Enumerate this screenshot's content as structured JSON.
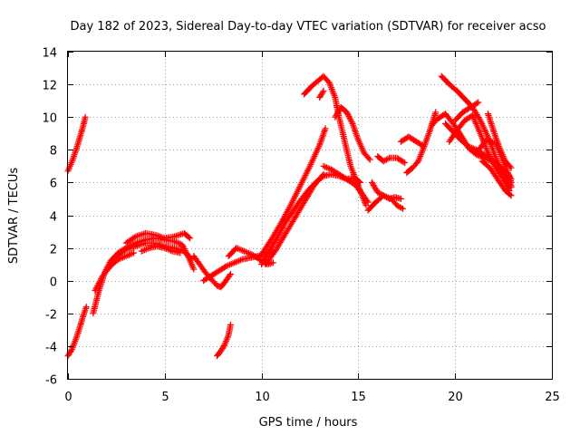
{
  "chart_data": {
    "type": "scatter",
    "title": "Day 182 of 2023, Sidereal Day-to-day VTEC variation (SDTVAR) for receiver acso",
    "xlabel": "GPS time / hours",
    "ylabel": "SDTVAR / TECUs",
    "xlim": [
      0,
      25
    ],
    "ylim": [
      -6,
      14
    ],
    "xticks": [
      "0",
      "5",
      "10",
      "15",
      "20",
      "25"
    ],
    "yticks": [
      "-6",
      "-4",
      "-2",
      "0",
      "2",
      "4",
      "6",
      "8",
      "10",
      "12",
      "14"
    ],
    "grid": true,
    "marker": "plus",
    "series": [
      {
        "name": "SDTVAR",
        "color": "#ff0000",
        "tracks": [
          {
            "x": [
              0.0,
              0.25,
              0.5,
              0.75,
              0.9
            ],
            "y": [
              6.7,
              7.4,
              8.3,
              9.3,
              10.0
            ]
          },
          {
            "x": [
              0.0,
              0.2,
              0.4,
              0.6,
              0.8,
              0.95
            ],
            "y": [
              -4.6,
              -4.2,
              -3.6,
              -2.9,
              -2.1,
              -1.6
            ]
          },
          {
            "x": [
              1.3,
              1.6,
              1.9,
              2.2,
              2.6,
              3.0,
              3.5,
              4.0,
              4.5,
              5.0,
              5.5,
              5.9,
              6.2,
              6.5
            ],
            "y": [
              -2.0,
              -0.6,
              0.5,
              1.2,
              1.7,
              2.0,
              2.3,
              2.5,
              2.6,
              2.5,
              2.4,
              2.2,
              1.5,
              0.7
            ]
          },
          {
            "x": [
              2.5,
              3.0,
              3.5,
              4.0,
              4.5,
              5.0,
              5.5,
              6.0,
              6.4
            ],
            "y": [
              1.5,
              1.9,
              2.1,
              2.3,
              2.3,
              2.1,
              2.0,
              1.8,
              1.3
            ]
          },
          {
            "x": [
              1.4,
              1.8,
              2.2,
              2.6,
              3.0,
              3.4
            ],
            "y": [
              -0.6,
              0.3,
              0.9,
              1.3,
              1.5,
              1.7
            ]
          },
          {
            "x": [
              3.0,
              3.5,
              4.0,
              4.5,
              5.0,
              5.5,
              6.0,
              6.3
            ],
            "y": [
              2.3,
              2.7,
              2.9,
              2.8,
              2.6,
              2.7,
              2.9,
              2.6
            ]
          },
          {
            "x": [
              3.8,
              4.2,
              4.6,
              5.0,
              5.4,
              5.8
            ],
            "y": [
              1.8,
              2.0,
              2.1,
              2.0,
              1.8,
              1.7
            ]
          },
          {
            "x": [
              6.5,
              6.8,
              7.1,
              7.4,
              7.7,
              7.9,
              8.1,
              8.4
            ],
            "y": [
              1.5,
              1.0,
              0.5,
              0.1,
              -0.3,
              -0.4,
              -0.1,
              0.4
            ]
          },
          {
            "x": [
              7.0,
              7.4,
              7.8,
              8.2,
              8.6,
              9.0,
              9.4,
              9.8,
              10.2,
              10.6
            ],
            "y": [
              0.0,
              0.3,
              0.6,
              0.9,
              1.1,
              1.3,
              1.4,
              1.5,
              1.6,
              1.8
            ]
          },
          {
            "x": [
              8.3,
              8.7,
              9.1,
              9.5,
              9.9,
              10.3,
              10.6
            ],
            "y": [
              1.5,
              2.0,
              1.8,
              1.6,
              1.3,
              1.0,
              1.1
            ]
          },
          {
            "x": [
              7.7,
              7.9,
              8.1,
              8.3,
              8.4
            ],
            "y": [
              -4.6,
              -4.3,
              -3.9,
              -3.3,
              -2.7
            ]
          },
          {
            "x": [
              10.0,
              10.4,
              10.8,
              11.2,
              11.6,
              12.0,
              12.4,
              12.8,
              13.2,
              13.6,
              14.0,
              14.4,
              14.8,
              15.1
            ],
            "y": [
              1.0,
              1.8,
              2.6,
              3.5,
              4.2,
              4.9,
              5.5,
              6.0,
              6.4,
              6.5,
              6.4,
              6.2,
              6.3,
              6.0
            ]
          },
          {
            "x": [
              10.0,
              10.5,
              11.0,
              11.5,
              12.0,
              12.5,
              13.0,
              13.3
            ],
            "y": [
              1.6,
              2.5,
              3.5,
              4.6,
              5.8,
              7.0,
              8.3,
              9.3
            ]
          },
          {
            "x": [
              10.2,
              10.7,
              11.2,
              11.7,
              12.2,
              12.7,
              13.2
            ],
            "y": [
              1.0,
              1.8,
              2.8,
              3.8,
              4.8,
              5.8,
              6.5
            ]
          },
          {
            "x": [
              13.2,
              13.6,
              14.0,
              14.4,
              14.8,
              15.2,
              15.5
            ],
            "y": [
              7.0,
              6.8,
              6.5,
              6.2,
              5.9,
              5.3,
              4.8
            ]
          },
          {
            "x": [
              12.2,
              12.6,
              13.0,
              13.2,
              13.5,
              13.8,
              14.0,
              14.3,
              14.6,
              15.0,
              15.4
            ],
            "y": [
              11.4,
              11.9,
              12.3,
              12.5,
              12.1,
              11.2,
              10.0,
              8.5,
              7.0,
              5.8,
              4.6
            ]
          },
          {
            "x": [
              13.0,
              13.2
            ],
            "y": [
              11.2,
              11.6
            ]
          },
          {
            "x": [
              13.8,
              14.1,
              14.4,
              14.7,
              15.0,
              15.3,
              15.6
            ],
            "y": [
              10.0,
              10.6,
              10.3,
              9.6,
              8.6,
              7.8,
              7.4
            ]
          },
          {
            "x": [
              15.5,
              15.9,
              16.3,
              16.7,
              17.0,
              17.3
            ],
            "y": [
              4.3,
              4.8,
              5.2,
              5.0,
              4.6,
              4.4
            ]
          },
          {
            "x": [
              15.7,
              16.0,
              16.3,
              16.6,
              16.9,
              17.2
            ],
            "y": [
              6.0,
              5.4,
              5.2,
              5.0,
              5.1,
              5.0
            ]
          },
          {
            "x": [
              16.0,
              16.3,
              16.6,
              17.0,
              17.4
            ],
            "y": [
              7.6,
              7.3,
              7.5,
              7.5,
              7.2
            ]
          },
          {
            "x": [
              17.5,
              17.8,
              18.1,
              18.4,
              18.7,
              19.0
            ],
            "y": [
              6.6,
              6.9,
              7.3,
              8.2,
              9.2,
              10.3
            ]
          },
          {
            "x": [
              17.2,
              17.6,
              18.0,
              18.4
            ],
            "y": [
              8.5,
              8.8,
              8.5,
              8.2
            ]
          },
          {
            "x": [
              18.8,
              19.1,
              19.5,
              19.9,
              20.3,
              20.7,
              21.1,
              21.5,
              21.9,
              22.3,
              22.7,
              22.9
            ],
            "y": [
              9.5,
              9.9,
              10.2,
              9.6,
              8.9,
              8.1,
              7.7,
              7.5,
              7.3,
              7.0,
              6.6,
              6.2
            ]
          },
          {
            "x": [
              19.3,
              19.7,
              20.1,
              20.5,
              20.9,
              21.3,
              21.7,
              22.1,
              22.5,
              22.9
            ],
            "y": [
              12.5,
              12.0,
              11.6,
              11.1,
              10.6,
              9.8,
              8.8,
              7.5,
              6.5,
              5.8
            ]
          },
          {
            "x": [
              19.5,
              19.9,
              20.3,
              20.7,
              21.1,
              21.5,
              21.9,
              22.3,
              22.7,
              22.9
            ],
            "y": [
              9.6,
              9.1,
              8.6,
              8.2,
              8.0,
              7.7,
              7.3,
              6.8,
              6.2,
              5.7
            ]
          },
          {
            "x": [
              19.7,
              20.1,
              20.5,
              20.9,
              21.3,
              21.7,
              22.1,
              22.5,
              22.8
            ],
            "y": [
              8.5,
              9.2,
              9.8,
              10.1,
              9.0,
              7.8,
              6.9,
              6.2,
              5.5
            ]
          },
          {
            "x": [
              20.0,
              20.4,
              20.8,
              21.2
            ],
            "y": [
              9.8,
              10.3,
              10.6,
              10.9
            ]
          },
          {
            "x": [
              21.7,
              22.0,
              22.3,
              22.6,
              22.9
            ],
            "y": [
              10.2,
              9.1,
              8.1,
              7.3,
              6.9
            ]
          },
          {
            "x": [
              21.1,
              21.6,
              22.1,
              22.6,
              22.9
            ],
            "y": [
              7.8,
              8.6,
              8.4,
              7.0,
              6.0
            ]
          },
          {
            "x": [
              21.4,
              21.8,
              22.2,
              22.6,
              22.9
            ],
            "y": [
              7.3,
              6.9,
              6.2,
              5.5,
              5.2
            ]
          }
        ]
      }
    ]
  }
}
